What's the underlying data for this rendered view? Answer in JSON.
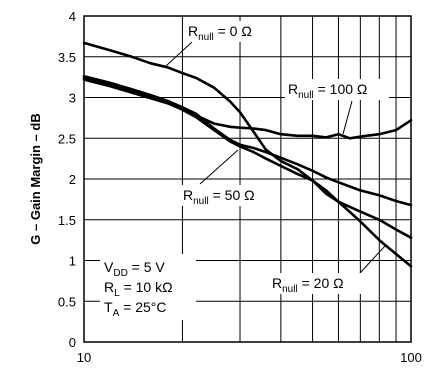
{
  "chart_data": {
    "type": "line",
    "ylabel": "G – Gain Margin – dB",
    "xlabel": "",
    "x_scale": "log",
    "xlim": [
      10,
      100
    ],
    "ylim": [
      0,
      4
    ],
    "x_ticks": [
      "10",
      "100"
    ],
    "y_ticks": [
      "0",
      "0.5",
      "1",
      "1.5",
      "2",
      "2.5",
      "3",
      "3.5",
      "4"
    ],
    "grid": true,
    "conditions": [
      {
        "main": "V",
        "sub": "DD",
        "rest": " = 5 V"
      },
      {
        "main": "R",
        "sub": "L",
        "rest": " = 10 kΩ"
      },
      {
        "main": "T",
        "sub": "A",
        "rest": " = 25°C"
      }
    ],
    "series": [
      {
        "name": "Rnull = 0 Ω",
        "label_main": "R",
        "label_sub": "null",
        "label_rest": " = 0 Ω",
        "x": [
          10,
          12,
          14,
          16,
          18,
          20,
          22,
          25,
          28,
          30,
          33,
          36,
          40,
          45,
          50,
          55,
          60,
          70,
          80,
          90,
          100
        ],
        "y": [
          3.67,
          3.58,
          3.5,
          3.42,
          3.37,
          3.3,
          3.24,
          3.12,
          2.95,
          2.82,
          2.58,
          2.36,
          2.22,
          2.12,
          1.98,
          1.82,
          1.72,
          1.6,
          1.5,
          1.38,
          1.28
        ]
      },
      {
        "name": "Rnull = 100 Ω",
        "label_main": "R",
        "label_sub": "null",
        "label_rest": " = 100 Ω",
        "x": [
          10,
          12,
          14,
          16,
          18,
          20,
          22,
          25,
          28,
          30,
          33,
          36,
          40,
          45,
          50,
          55,
          60,
          65,
          70,
          80,
          90,
          100
        ],
        "y": [
          3.24,
          3.16,
          3.08,
          3.01,
          2.94,
          2.86,
          2.78,
          2.68,
          2.64,
          2.63,
          2.62,
          2.6,
          2.55,
          2.53,
          2.53,
          2.51,
          2.55,
          2.5,
          2.52,
          2.55,
          2.6,
          2.72
        ]
      },
      {
        "name": "Rnull = 50 Ω",
        "label_main": "R",
        "label_sub": "null",
        "label_rest": " = 50 Ω",
        "x": [
          10,
          12,
          14,
          16,
          18,
          20,
          22,
          25,
          28,
          30,
          33,
          36,
          40,
          45,
          50,
          55,
          60,
          70,
          80,
          90,
          100
        ],
        "y": [
          3.26,
          3.18,
          3.1,
          3.03,
          2.96,
          2.88,
          2.8,
          2.62,
          2.48,
          2.42,
          2.38,
          2.33,
          2.26,
          2.18,
          2.1,
          2.02,
          1.96,
          1.86,
          1.8,
          1.73,
          1.68
        ]
      },
      {
        "name": "Rnull = 20 Ω",
        "label_main": "R",
        "label_sub": "null",
        "label_rest": " = 20 Ω",
        "x": [
          10,
          12,
          14,
          16,
          18,
          20,
          22,
          25,
          28,
          30,
          33,
          36,
          40,
          45,
          50,
          55,
          60,
          70,
          80,
          90,
          100
        ],
        "y": [
          3.22,
          3.14,
          3.06,
          2.99,
          2.93,
          2.85,
          2.76,
          2.6,
          2.46,
          2.4,
          2.33,
          2.25,
          2.16,
          2.06,
          1.98,
          1.86,
          1.72,
          1.48,
          1.25,
          1.08,
          0.93
        ]
      }
    ]
  }
}
